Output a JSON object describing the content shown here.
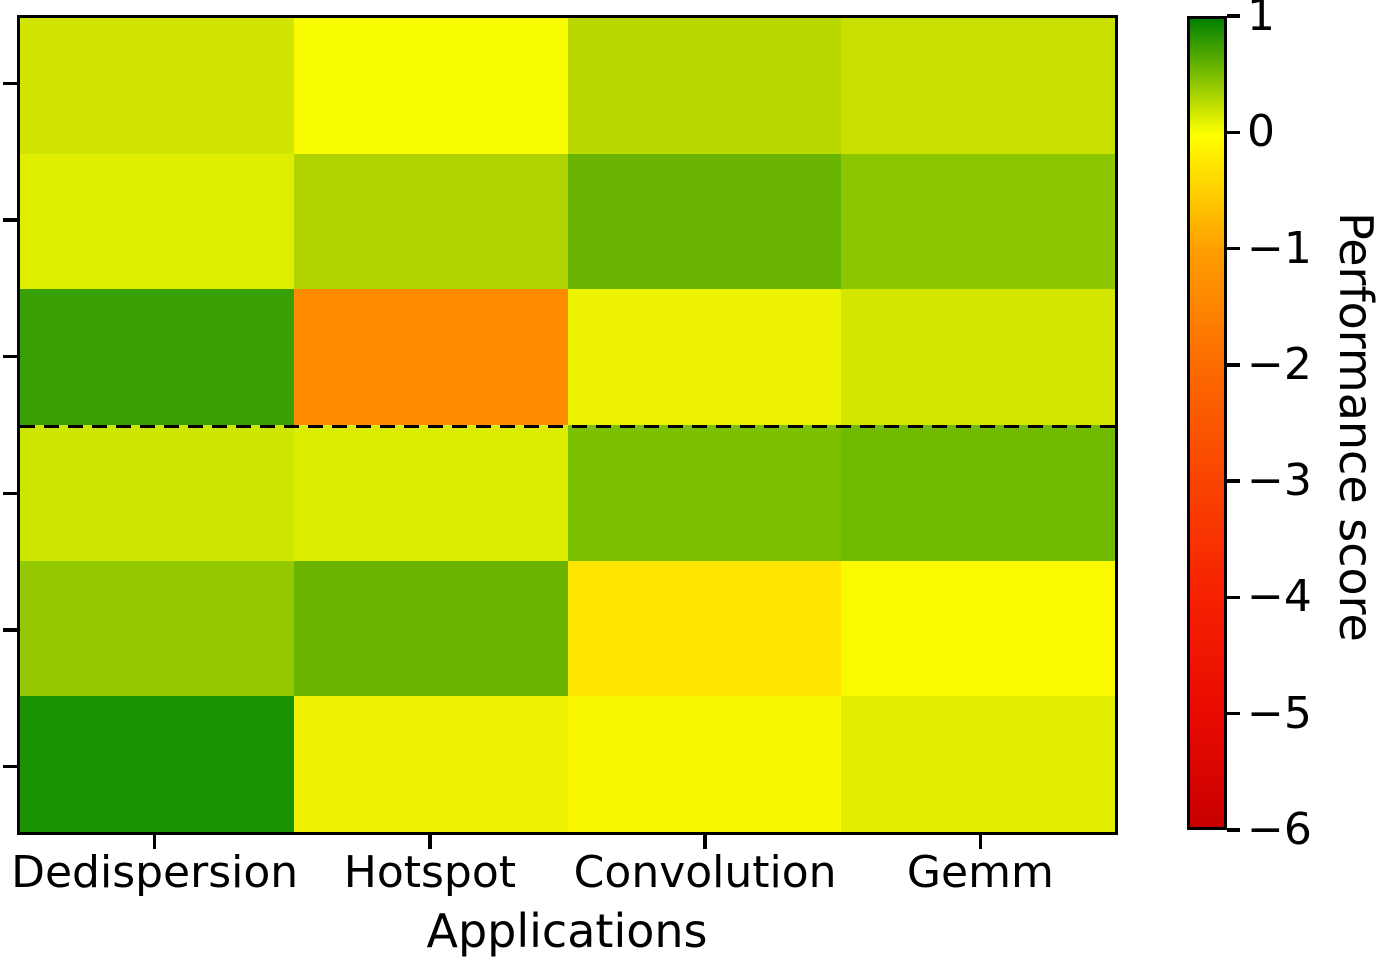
{
  "chart_data": {
    "type": "heatmap",
    "title": "",
    "xlabel": "Applications",
    "ylabel": "",
    "categories_x": [
      "Dedispersion",
      "Hotspot",
      "Convolution",
      "Gemm"
    ],
    "rows": 6,
    "y_tick_labels": [
      "",
      "",
      "",
      "",
      "",
      ""
    ],
    "values": [
      [
        0.18,
        0.02,
        0.28,
        0.21
      ],
      [
        0.12,
        0.31,
        0.59,
        0.46
      ],
      [
        0.79,
        -1.35,
        0.06,
        0.17
      ],
      [
        0.19,
        0.13,
        0.52,
        0.56
      ],
      [
        0.43,
        0.59,
        -0.26,
        -0.02
      ],
      [
        0.89,
        0.06,
        0.02,
        0.11
      ]
    ],
    "cell_colors": [
      [
        "#d0e600",
        "#f9fb00",
        "#b8d800",
        "#c8e000"
      ],
      [
        "#dfee00",
        "#b0d400",
        "#68b400",
        "#8cc600"
      ],
      [
        "#38a004",
        "#ff8c00",
        "#edf200",
        "#d2e600"
      ],
      [
        "#cce600",
        "#dcec00",
        "#7cc000",
        "#70ba00"
      ],
      [
        "#94c800",
        "#6ab400",
        "#ffe600",
        "#fbf900"
      ],
      [
        "#189200",
        "#eef200",
        "#f9f800",
        "#e0ec00"
      ]
    ],
    "dashed_divider_after_row": 3,
    "grid": false,
    "colorbar": {
      "label": "Performance score",
      "range": [
        -6,
        1
      ],
      "ticks": [
        1,
        0,
        -1,
        -2,
        -3,
        -4,
        -5,
        -6
      ],
      "tick_labels": [
        "1",
        "0",
        "−1",
        "−2",
        "−3",
        "−4",
        "−5",
        "−6"
      ],
      "gradient_stops": [
        {
          "pos": 0.0,
          "color": "#008000"
        },
        {
          "pos": 0.143,
          "color": "#ffff00"
        },
        {
          "pos": 0.286,
          "color": "#ff9e00"
        },
        {
          "pos": 0.429,
          "color": "#fc6b00"
        },
        {
          "pos": 0.571,
          "color": "#f94400"
        },
        {
          "pos": 0.714,
          "color": "#f62100"
        },
        {
          "pos": 0.857,
          "color": "#ea0b00"
        },
        {
          "pos": 1.0,
          "color": "#c80000"
        }
      ]
    }
  }
}
